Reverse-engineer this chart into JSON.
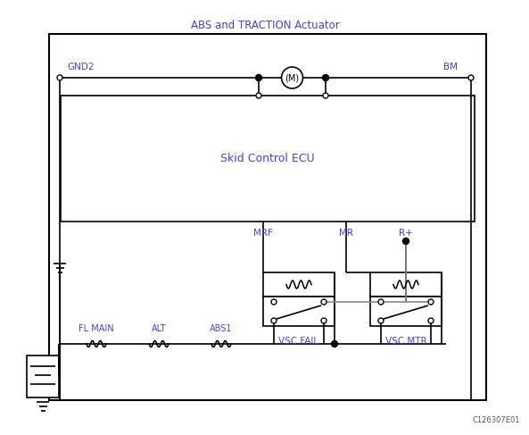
{
  "title": "ABS and TRACTION Actuator",
  "title_color": "#4444cc",
  "background_color": "#ffffff",
  "line_color": "#000000",
  "label_color": "#4444cc",
  "gray_color": "#888888",
  "gnd2_label": "GND2",
  "bm_label": "BM",
  "mrf_label": "MRF",
  "mr_label": "MR",
  "rplus_label": "R+",
  "ecu_label": "Skid Control ECU",
  "fl_main_label": "FL MAIN",
  "alt_label": "ALT",
  "abs1_label": "ABS1",
  "vsc_fail_label": "VSC FAIL",
  "vsc_mtr_label": "VSC MTR",
  "diagram_id": "C126307E01",
  "fig_width": 5.93,
  "fig_height": 4.87,
  "dpi": 100
}
